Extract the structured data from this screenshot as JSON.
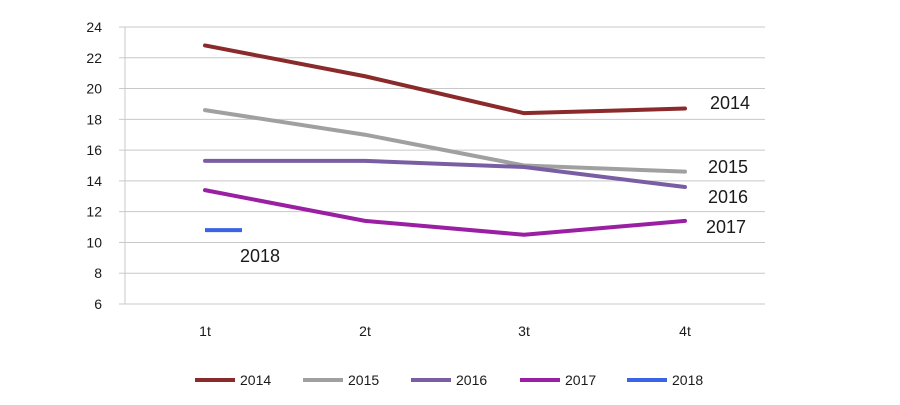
{
  "chart_data": {
    "type": "line",
    "categories": [
      "1t",
      "2t",
      "3t",
      "4t"
    ],
    "ylim": [
      6,
      24
    ],
    "yticks": [
      6,
      8,
      10,
      12,
      14,
      16,
      18,
      20,
      22,
      24
    ],
    "grid": true,
    "legend_position": "bottom",
    "series": [
      {
        "name": "2014",
        "color": "#8b2a2a",
        "values": [
          22.8,
          20.8,
          18.4,
          18.7
        ],
        "label": "2014"
      },
      {
        "name": "2015",
        "color": "#a0a0a0",
        "values": [
          18.6,
          17.0,
          15.0,
          14.6
        ],
        "label": "2015"
      },
      {
        "name": "2016",
        "color": "#7a5ea3",
        "values": [
          15.3,
          15.3,
          14.9,
          13.6
        ],
        "label": "2016"
      },
      {
        "name": "2017",
        "color": "#9a1fa3",
        "values": [
          13.4,
          11.4,
          10.5,
          11.4
        ],
        "label": "2017"
      },
      {
        "name": "2018",
        "color": "#3a63e6",
        "values": [
          10.8,
          null,
          null,
          null
        ],
        "label": "2018"
      }
    ]
  }
}
